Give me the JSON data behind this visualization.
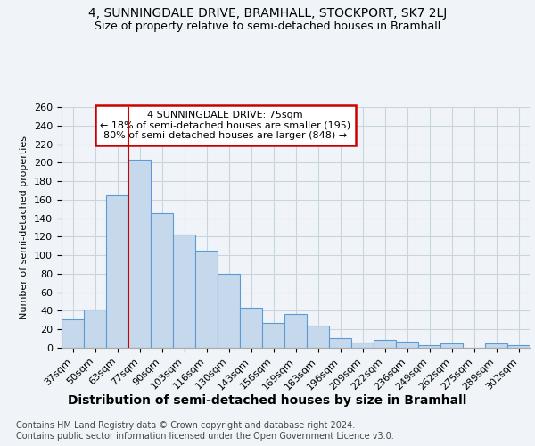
{
  "title": "4, SUNNINGDALE DRIVE, BRAMHALL, STOCKPORT, SK7 2LJ",
  "subtitle": "Size of property relative to semi-detached houses in Bramhall",
  "xlabel": "Distribution of semi-detached houses by size in Bramhall",
  "ylabel": "Number of semi-detached properties",
  "categories": [
    "37sqm",
    "50sqm",
    "63sqm",
    "77sqm",
    "90sqm",
    "103sqm",
    "116sqm",
    "130sqm",
    "143sqm",
    "156sqm",
    "169sqm",
    "183sqm",
    "196sqm",
    "209sqm",
    "222sqm",
    "236sqm",
    "249sqm",
    "262sqm",
    "275sqm",
    "289sqm",
    "302sqm"
  ],
  "values": [
    31,
    41,
    165,
    203,
    145,
    122,
    105,
    80,
    43,
    27,
    37,
    24,
    11,
    6,
    9,
    7,
    3,
    5,
    0,
    5,
    3
  ],
  "bar_color": "#c6d9ec",
  "bar_edge_color": "#5b9bd5",
  "red_line_x": 2.5,
  "annotation_label": "4 SUNNINGDALE DRIVE: 75sqm",
  "annotation_line1": "← 18% of semi-detached houses are smaller (195)",
  "annotation_line2": "80% of semi-detached houses are larger (848) →",
  "annotation_box_color": "#ffffff",
  "annotation_box_edge": "#cc0000",
  "red_line_color": "#cc0000",
  "background_color": "#f0f4f8",
  "grid_color": "#c8d4e0",
  "ylim": [
    0,
    260
  ],
  "yticks": [
    0,
    20,
    40,
    60,
    80,
    100,
    120,
    140,
    160,
    180,
    200,
    220,
    240,
    260
  ],
  "title_fontsize": 10,
  "subtitle_fontsize": 9,
  "xlabel_fontsize": 10,
  "ylabel_fontsize": 8,
  "tick_fontsize": 8,
  "footer_line1": "Contains HM Land Registry data © Crown copyright and database right 2024.",
  "footer_line2": "Contains public sector information licensed under the Open Government Licence v3.0.",
  "footer_fontsize": 7
}
